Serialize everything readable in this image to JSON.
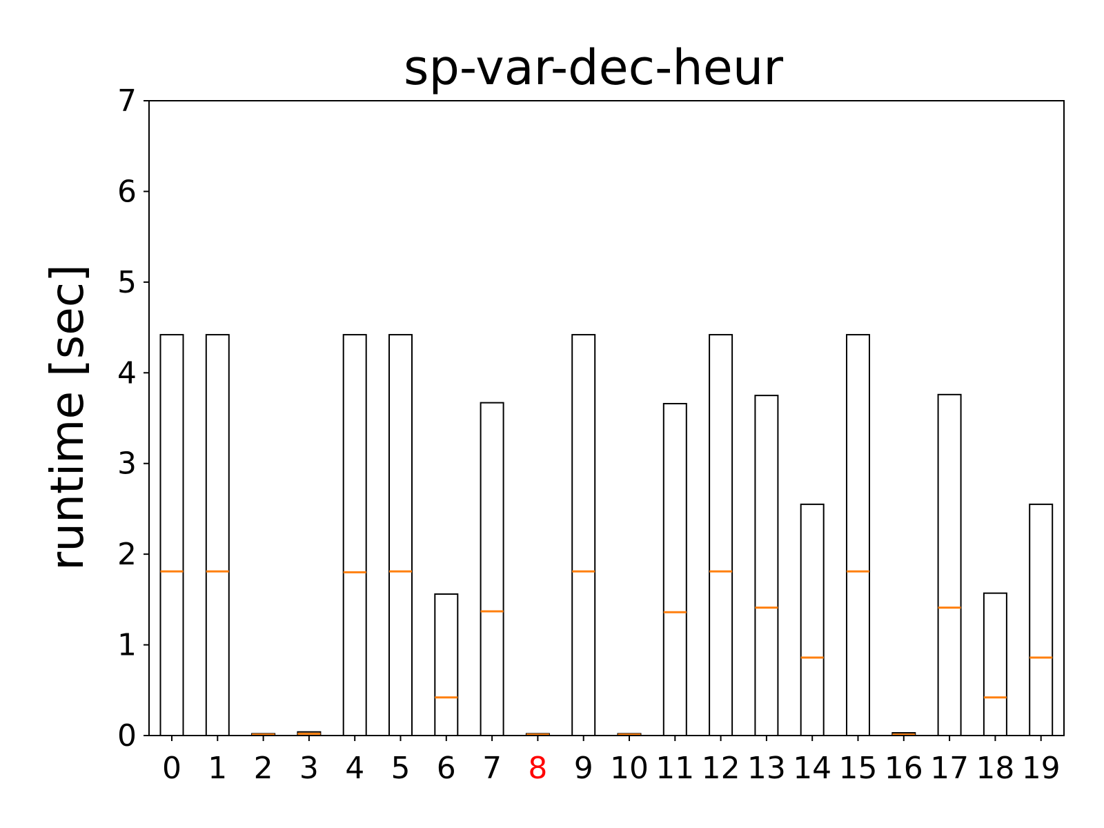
{
  "chart_data": {
    "type": "box",
    "title": "sp-var-dec-heur",
    "xlabel": "",
    "ylabel": "runtime [sec]",
    "ylim": [
      0,
      7
    ],
    "yticks": [
      0,
      1,
      2,
      3,
      4,
      5,
      6,
      7
    ],
    "categories": [
      "0",
      "1",
      "2",
      "3",
      "4",
      "5",
      "6",
      "7",
      "8",
      "9",
      "10",
      "11",
      "12",
      "13",
      "14",
      "15",
      "16",
      "17",
      "18",
      "19"
    ],
    "highlighted_category": "8",
    "box_top": [
      4.42,
      4.42,
      0.02,
      0.04,
      4.42,
      4.42,
      1.56,
      3.67,
      0.02,
      4.42,
      0.02,
      3.66,
      4.42,
      3.75,
      2.55,
      4.42,
      0.03,
      3.76,
      1.57,
      2.55
    ],
    "box_bottom": [
      0,
      0,
      0,
      0,
      0,
      0,
      0,
      0,
      0,
      0,
      0,
      0,
      0,
      0,
      0,
      0,
      0,
      0,
      0,
      0
    ],
    "medians": [
      1.81,
      1.81,
      0.01,
      0.02,
      1.8,
      1.81,
      0.42,
      1.37,
      0.01,
      1.81,
      0.01,
      1.36,
      1.81,
      1.41,
      0.86,
      1.81,
      0.01,
      1.41,
      0.42,
      0.86
    ],
    "grid": false,
    "legend": "none",
    "colors": {
      "box_edge": "#000000",
      "median": "#ff7f0e",
      "highlight_tick": "#ff0000",
      "axis": "#000000"
    }
  }
}
